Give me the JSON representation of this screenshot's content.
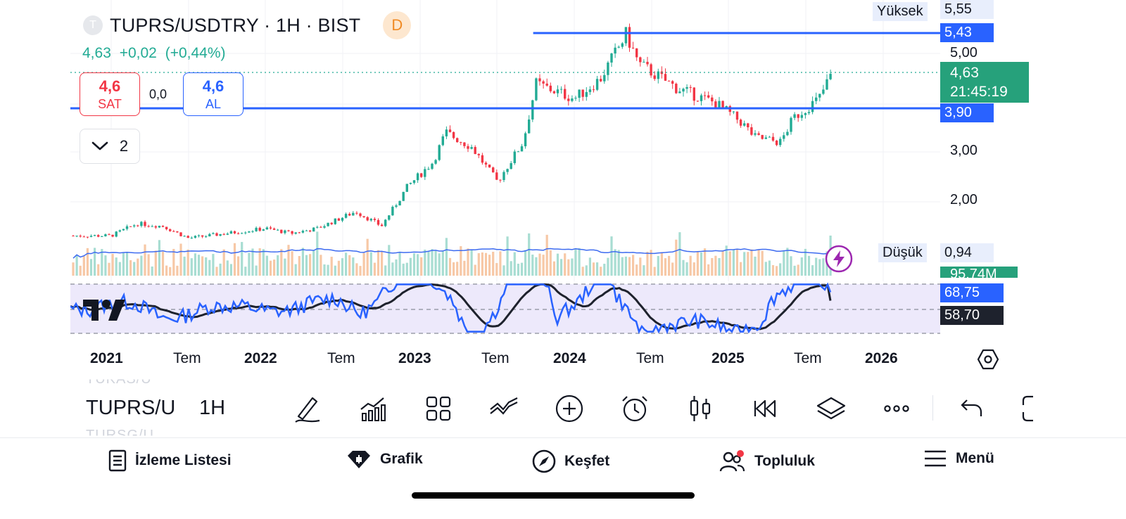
{
  "header": {
    "symbol_initial": "T",
    "title": "TUPRS/USDTRY · 1H · BIST",
    "badge": "D",
    "last": "4,63",
    "change": "+0,02",
    "change_pct": "(+0,44%)"
  },
  "trade": {
    "sell_value": "4,6",
    "sell_label": "SAT",
    "spread": "0,0",
    "buy_value": "4,6",
    "buy_label": "AL"
  },
  "indicator_toggle": {
    "count": "2"
  },
  "price_axis": {
    "high_label": "Yüksek",
    "high_value": "5,55",
    "line_upper": "5,43",
    "tick_500": "5,00",
    "current_price": "4,63",
    "countdown": "21:45:19",
    "line_lower": "3,90",
    "tick_300": "3,00",
    "tick_200": "2,00",
    "low_label": "Düşük",
    "low_value": "0,94",
    "volume": "95,74M"
  },
  "oscillator": {
    "value_blue": "68,75",
    "value_dark": "58,70"
  },
  "time_axis": [
    "2021",
    "Tem",
    "2022",
    "Tem",
    "2023",
    "Tem",
    "2024",
    "Tem",
    "2025",
    "Tem",
    "2026"
  ],
  "toolbar": {
    "symbol": "TUPRS/U",
    "interval": "1H",
    "ghost_above": "TUKAS/U",
    "ghost_below": "TURSG/U"
  },
  "tabs": [
    {
      "label": "İzleme Listesi",
      "icon": "watchlist-icon"
    },
    {
      "label": "Grafik",
      "icon": "chart-gem-icon"
    },
    {
      "label": "Keşfet",
      "icon": "compass-icon"
    },
    {
      "label": "Topluluk",
      "icon": "community-icon"
    },
    {
      "label": "Menü",
      "icon": "menu-icon"
    }
  ],
  "colors": {
    "up": "#22ab94",
    "down": "#f23645",
    "blue": "#2962ff",
    "osc_band": "#ede9fb",
    "current_price_bg": "#26a17b",
    "vol_up": "#a8ddd2",
    "vol_down": "#f7c8a6"
  },
  "chart_data": {
    "type": "candlestick",
    "price_anchors": [
      {
        "date": "2021-01",
        "price": 1.3
      },
      {
        "date": "2021-03",
        "price": 1.55
      },
      {
        "date": "2021-05",
        "price": 1.5
      },
      {
        "date": "2021-07",
        "price": 1.25
      },
      {
        "date": "2021-10",
        "price": 1.35
      },
      {
        "date": "2022-01",
        "price": 1.45
      },
      {
        "date": "2022-03",
        "price": 1.35
      },
      {
        "date": "2022-05",
        "price": 1.45
      },
      {
        "date": "2022-08",
        "price": 1.8
      },
      {
        "date": "2022-10",
        "price": 1.5
      },
      {
        "date": "2022-12",
        "price": 2.3
      },
      {
        "date": "2023-02",
        "price": 2.8
      },
      {
        "date": "2023-03",
        "price": 3.4
      },
      {
        "date": "2023-05",
        "price": 3.1
      },
      {
        "date": "2023-07",
        "price": 2.4
      },
      {
        "date": "2023-09",
        "price": 3.2
      },
      {
        "date": "2023-10",
        "price": 4.4
      },
      {
        "date": "2023-11",
        "price": 4.3
      },
      {
        "date": "2024-01",
        "price": 4.1
      },
      {
        "date": "2024-03",
        "price": 4.5
      },
      {
        "date": "2024-05",
        "price": 5.4
      },
      {
        "date": "2024-06",
        "price": 4.8
      },
      {
        "date": "2024-09",
        "price": 4.3
      },
      {
        "date": "2024-12",
        "price": 4.0
      },
      {
        "date": "2025-02",
        "price": 3.6
      },
      {
        "date": "2025-03",
        "price": 3.3
      },
      {
        "date": "2025-05",
        "price": 3.2
      },
      {
        "date": "2025-06",
        "price": 3.7
      },
      {
        "date": "2025-08",
        "price": 4.1
      },
      {
        "date": "2025-09",
        "price": 4.63
      }
    ],
    "y_ticks": [
      2.0,
      3.0,
      5.0
    ],
    "horizontal_lines": [
      5.43,
      3.9
    ],
    "high": 5.55,
    "low": 0.94,
    "last": 4.63,
    "oscillator": {
      "blue": 68.75,
      "dark": 58.7
    }
  }
}
